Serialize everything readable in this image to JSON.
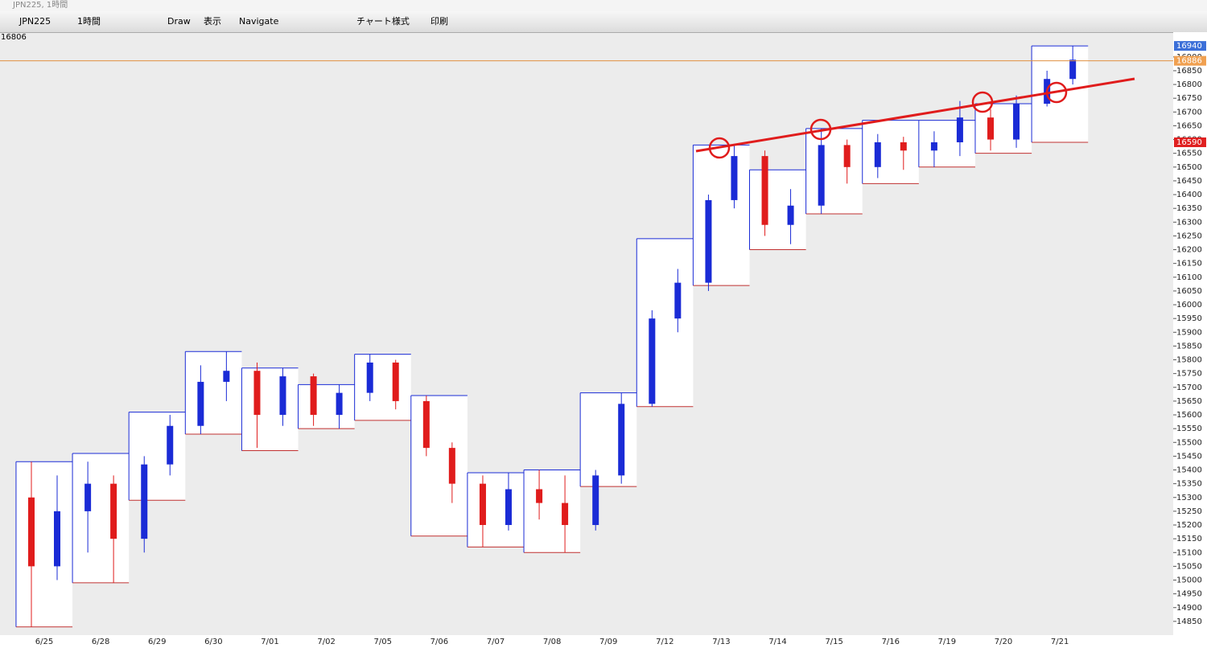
{
  "window_title": "JPN225, 1時間",
  "toolbar": {
    "symbol": "JPN225",
    "timeframe": "1時間",
    "draw": "Draw",
    "view": "表示",
    "navigate": "Navigate",
    "chart_style": "チャート様式",
    "print": "印刷"
  },
  "chart_data": {
    "type": "candlestick",
    "corner_label": "16806",
    "categories": [
      "6/25",
      "6/28",
      "6/29",
      "6/30",
      "7/01",
      "7/02",
      "7/05",
      "7/06",
      "7/07",
      "7/08",
      "7/09",
      "7/12",
      "7/13",
      "7/14",
      "7/15",
      "7/16",
      "7/19",
      "7/20",
      "7/21"
    ],
    "box_high": [
      15430,
      15460,
      15610,
      15830,
      15770,
      15710,
      15820,
      15670,
      15390,
      15400,
      15680,
      16240,
      16580,
      16490,
      16640,
      16670,
      16670,
      16730,
      16940
    ],
    "box_low": [
      14830,
      14990,
      15290,
      15530,
      15470,
      15550,
      15580,
      15160,
      15120,
      15100,
      15340,
      15630,
      16070,
      16200,
      16330,
      16440,
      16500,
      16550,
      16590
    ],
    "candles": [
      [
        [
          15300,
          15430,
          14830,
          15050
        ],
        [
          15050,
          15380,
          15000,
          15250
        ]
      ],
      [
        [
          15250,
          15430,
          15100,
          15350
        ],
        [
          15350,
          15380,
          14990,
          15150
        ]
      ],
      [
        [
          15150,
          15450,
          15100,
          15420
        ],
        [
          15420,
          15600,
          15380,
          15560
        ]
      ],
      [
        [
          15560,
          15780,
          15530,
          15720
        ],
        [
          15720,
          15830,
          15650,
          15760
        ]
      ],
      [
        [
          15760,
          15790,
          15480,
          15600
        ],
        [
          15600,
          15770,
          15560,
          15740
        ]
      ],
      [
        [
          15740,
          15750,
          15560,
          15600
        ],
        [
          15600,
          15710,
          15550,
          15680
        ]
      ],
      [
        [
          15680,
          15820,
          15650,
          15790
        ],
        [
          15790,
          15800,
          15620,
          15650
        ]
      ],
      [
        [
          15650,
          15670,
          15450,
          15480
        ],
        [
          15480,
          15500,
          15280,
          15350
        ]
      ],
      [
        [
          15350,
          15380,
          15120,
          15200
        ],
        [
          15200,
          15390,
          15180,
          15330
        ]
      ],
      [
        [
          15330,
          15400,
          15220,
          15280
        ],
        [
          15280,
          15380,
          15100,
          15200
        ]
      ],
      [
        [
          15200,
          15400,
          15180,
          15380
        ],
        [
          15380,
          15680,
          15350,
          15640
        ]
      ],
      [
        [
          15640,
          15980,
          15630,
          15950
        ],
        [
          15950,
          16130,
          15900,
          16080
        ]
      ],
      [
        [
          16080,
          16400,
          16050,
          16380
        ],
        [
          16380,
          16580,
          16350,
          16540
        ]
      ],
      [
        [
          16540,
          16560,
          16250,
          16290
        ],
        [
          16290,
          16420,
          16220,
          16360
        ]
      ],
      [
        [
          16360,
          16640,
          16330,
          16580
        ],
        [
          16580,
          16600,
          16440,
          16500
        ]
      ],
      [
        [
          16500,
          16620,
          16460,
          16590
        ],
        [
          16590,
          16610,
          16490,
          16560
        ]
      ],
      [
        [
          16560,
          16630,
          16500,
          16590
        ],
        [
          16590,
          16740,
          16540,
          16680
        ]
      ],
      [
        [
          16680,
          16710,
          16560,
          16600
        ],
        [
          16600,
          16760,
          16570,
          16730
        ]
      ],
      [
        [
          16730,
          16850,
          16720,
          16820
        ],
        [
          16820,
          16940,
          16800,
          16890
        ]
      ]
    ],
    "up_color": "#1a2bd6",
    "down_color": "#e01c1c",
    "ylim": [
      14800,
      16990
    ],
    "yticks": [
      14850,
      14900,
      14950,
      15000,
      15050,
      15100,
      15150,
      15200,
      15250,
      15300,
      15350,
      15400,
      15450,
      15500,
      15550,
      15600,
      15650,
      15700,
      15750,
      15800,
      15850,
      15900,
      15950,
      16000,
      16050,
      16100,
      16150,
      16200,
      16250,
      16300,
      16350,
      16400,
      16450,
      16500,
      16550,
      16600,
      16650,
      16700,
      16750,
      16800,
      16850,
      16900
    ],
    "price_labels": [
      {
        "value": 16940,
        "color": "#3b6fd8"
      },
      {
        "value": 16886,
        "color": "#f0a050"
      },
      {
        "value": 16590,
        "color": "#e02020"
      }
    ],
    "current_line": 16886
  }
}
